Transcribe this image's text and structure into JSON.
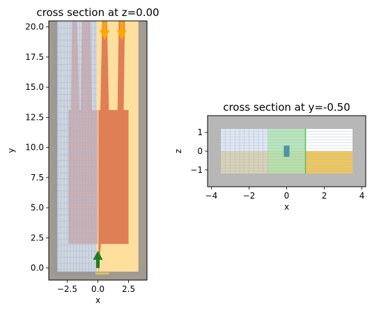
{
  "chart_data": [
    {
      "type": "heatmap",
      "title": "cross section at z=0.00",
      "xlabel": "x",
      "ylabel": "y",
      "xlim": [
        -4.0,
        4.0
      ],
      "ylim": [
        -1.0,
        20.5
      ],
      "xticks": [
        -2.5,
        0.0,
        2.5
      ],
      "xtick_labels": [
        "−2.5",
        "0.0",
        "2.5"
      ],
      "yticks": [
        0.0,
        2.5,
        5.0,
        7.5,
        10.0,
        12.5,
        15.0,
        17.5,
        20.0
      ],
      "ytick_labels": [
        "0.0",
        "2.5",
        "5.0",
        "7.5",
        "10.0",
        "12.5",
        "15.0",
        "17.5",
        "20.0"
      ],
      "pml_thickness": 0.7,
      "colors": {
        "pml": "#8c8c8c",
        "background": "#ffdf9e",
        "mode_region": "#cfd6e0",
        "grid": "#9bb1cf",
        "core": "#e07e55",
        "source": "#1e7d1e",
        "monitor": "#ffa500"
      },
      "mode_region": {
        "x": [
          -3.5,
          -0.1
        ],
        "y": [
          -0.6,
          20.5
        ]
      },
      "core_polygon": [
        [
          0.05,
          -0.6
        ],
        [
          0.25,
          2.0
        ],
        [
          2.5,
          2.0
        ],
        [
          2.5,
          13.1
        ],
        [
          2.1,
          13.1
        ],
        [
          2.2,
          20.5
        ],
        [
          1.7,
          20.5
        ],
        [
          1.6,
          13.1
        ],
        [
          0.9,
          13.1
        ],
        [
          0.75,
          20.5
        ],
        [
          0.35,
          20.5
        ],
        [
          0.2,
          13.1
        ],
        [
          0.05,
          13.1
        ]
      ],
      "shadow_polygon": [
        [
          -2.4,
          2.0
        ],
        [
          0.0,
          2.0
        ],
        [
          0.0,
          13.1
        ],
        [
          -0.5,
          13.1
        ],
        [
          -0.6,
          20.5
        ],
        [
          -1.3,
          20.5
        ],
        [
          -1.4,
          13.1
        ],
        [
          -1.5,
          13.1
        ],
        [
          -1.7,
          20.5
        ],
        [
          -2.1,
          20.5
        ],
        [
          -2.2,
          13.1
        ],
        [
          -2.4,
          13.1
        ]
      ],
      "sources": [
        {
          "x": 0.0,
          "y0": 0.0,
          "y1": 1.2
        }
      ],
      "monitors": [
        {
          "x": 0.55,
          "y0": 21.0,
          "y1": 19.0
        },
        {
          "x": 1.95,
          "y0": 21.0,
          "y1": 19.0
        }
      ]
    },
    {
      "type": "heatmap",
      "title": "cross section at y=-0.50",
      "xlabel": "x",
      "ylabel": "z",
      "xlim": [
        -4.2,
        4.2
      ],
      "ylim": [
        -1.9,
        1.9
      ],
      "xticks": [
        -4,
        -2,
        0,
        2,
        4
      ],
      "xtick_labels": [
        "−4",
        "−2",
        "0",
        "2",
        "4"
      ],
      "yticks": [
        -1,
        0,
        1
      ],
      "ytick_labels": [
        "−1",
        "0",
        "1"
      ],
      "pml_thickness": 0.7,
      "colors": {
        "pml": "#a6a6a6",
        "background": "#ffffff",
        "mode_region": "#cfdbeb",
        "grid": "#a0b6d4",
        "source_plane": "#a8e6a0",
        "substrate": "#f0c75a",
        "core": "#3f8ea0"
      },
      "substrate": {
        "x": [
          -3.5,
          3.5
        ],
        "z": [
          -1.2,
          0.0
        ]
      },
      "mode_region": {
        "x": [
          -3.5,
          1.0
        ],
        "z": [
          -1.2,
          1.2
        ]
      },
      "source_plane": {
        "x": [
          -1.0,
          1.0
        ],
        "z": [
          -1.2,
          1.2
        ]
      },
      "core": {
        "x": [
          -0.15,
          0.15
        ],
        "z": [
          -0.3,
          0.3
        ]
      }
    }
  ]
}
